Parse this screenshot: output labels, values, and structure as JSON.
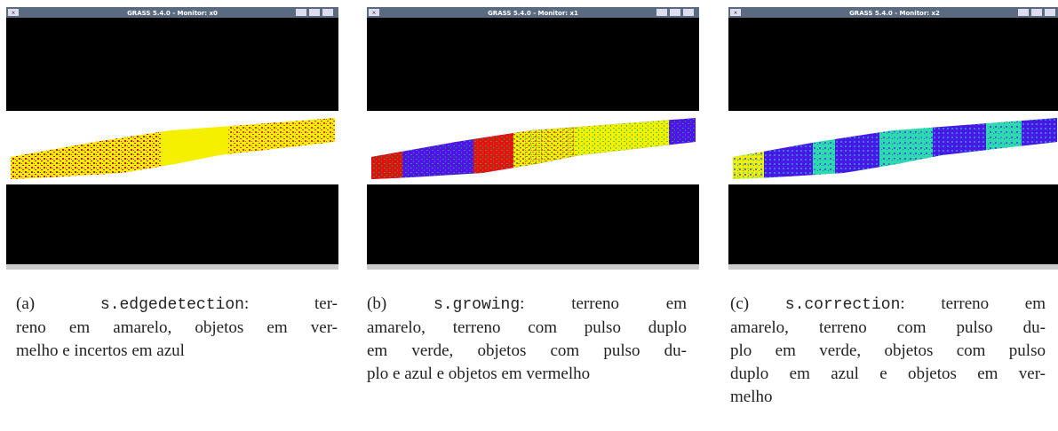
{
  "windows": [
    {
      "title": "GRASS 5.4.0 - Monitor: x0",
      "caption": {
        "label": "(a)",
        "command": "s.edgedetection",
        "lines": [
          ": ter-",
          "reno em amarelo, objetos em ver-",
          "melho e incertos em azul"
        ]
      }
    },
    {
      "title": "GRASS 5.4.0 - Monitor: x1",
      "caption": {
        "label": "(b)",
        "command": "s.growing",
        "lines": [
          ": terreno em",
          "amarelo, terreno com pulso duplo",
          "em verde, objetos com pulso du-",
          "plo e azul e objetos em vermelho"
        ]
      }
    },
    {
      "title": "GRASS 5.4.0 - Monitor: x2",
      "caption": {
        "label": "(c)",
        "command": "s.correction",
        "lines": [
          ": terreno em",
          "amarelo, terreno com pulso du-",
          "plo em verde, objetos com pulso",
          "duplo em azul e objetos em ver-",
          "melho"
        ]
      }
    }
  ]
}
